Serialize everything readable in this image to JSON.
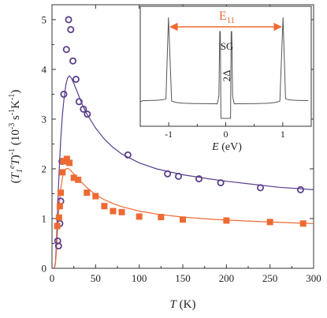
{
  "chart_data": [
    {
      "type": "scatter",
      "title": "",
      "xlabel": "T (K)",
      "xlabel_italic": "T",
      "xlabel_unit": " (K)",
      "ylabel": "(T₁ᵉT)⁻¹ (10⁻³ s⁻¹K⁻¹)",
      "ylabel_lead": "(",
      "ylabel_T": "T",
      "ylabel_sub1": "1",
      "ylabel_supe": "e",
      "ylabel_T2": "T",
      "ylabel_close": ")",
      "ylabel_sup_m1": "-1",
      "ylabel_units": " (10",
      "ylabel_sup_m3": "-3",
      "ylabel_units2": " s",
      "ylabel_sup_m1b": "-1",
      "ylabel_units3": "K",
      "ylabel_sup_m1c": "-1",
      "ylabel_units4": ")",
      "xlim": [
        0,
        300
      ],
      "ylim": [
        0,
        5.3
      ],
      "xticks": [
        0,
        50,
        100,
        150,
        200,
        250,
        300
      ],
      "yticks": [
        0,
        1,
        2,
        3,
        4,
        5
      ],
      "grid": false,
      "series": [
        {
          "marker": "circle",
          "color": "#5b3f8c",
          "points": [
            [
              6.5,
              0.55
            ],
            [
              7.5,
              0.45
            ],
            [
              9,
              0.9
            ],
            [
              10,
              1.35
            ],
            [
              11.5,
              2.15
            ],
            [
              13.5,
              3.5
            ],
            [
              16.5,
              4.4
            ],
            [
              19,
              5.0
            ],
            [
              21.5,
              4.8
            ],
            [
              24,
              4.17
            ],
            [
              27.5,
              3.8
            ],
            [
              31,
              3.35
            ],
            [
              36,
              3.2
            ],
            [
              40.5,
              3.1
            ],
            [
              87,
              2.28
            ],
            [
              132.5,
              1.9
            ],
            [
              145,
              1.85
            ],
            [
              168.5,
              1.8
            ],
            [
              193.5,
              1.72
            ],
            [
              239,
              1.62
            ],
            [
              285,
              1.58
            ]
          ]
        },
        {
          "marker": "square",
          "color": "#ee6a33",
          "points": [
            [
              6,
              0.85
            ],
            [
              8,
              1.02
            ],
            [
              9,
              1.25
            ],
            [
              10,
              1.52
            ],
            [
              12,
              1.93
            ],
            [
              13,
              2.15
            ],
            [
              17,
              2.2
            ],
            [
              20,
              2.12
            ],
            [
              25,
              1.82
            ],
            [
              30,
              1.78
            ],
            [
              40,
              1.52
            ],
            [
              50,
              1.45
            ],
            [
              60,
              1.25
            ],
            [
              70,
              1.15
            ],
            [
              80,
              1.13
            ],
            [
              100,
              1.04
            ],
            [
              125,
              1.03
            ],
            [
              150,
              0.98
            ],
            [
              200,
              0.96
            ],
            [
              250,
              0.93
            ],
            [
              288,
              0.9
            ]
          ]
        }
      ],
      "fit_curves": [
        {
          "color": "#5b3f8c",
          "points": [
            [
              2,
              0
            ],
            [
              3,
              0.02
            ],
            [
              4,
              0.12
            ],
            [
              5,
              0.45
            ],
            [
              6,
              0.95
            ],
            [
              7,
              1.45
            ],
            [
              8,
              1.9
            ],
            [
              10,
              2.6
            ],
            [
              12,
              3.1
            ],
            [
              14,
              3.45
            ],
            [
              16,
              3.7
            ],
            [
              18,
              3.83
            ],
            [
              20,
              3.87
            ],
            [
              22,
              3.83
            ],
            [
              25,
              3.72
            ],
            [
              30,
              3.5
            ],
            [
              35,
              3.28
            ],
            [
              40,
              3.1
            ],
            [
              50,
              2.82
            ],
            [
              60,
              2.6
            ],
            [
              70,
              2.43
            ],
            [
              80,
              2.3
            ],
            [
              100,
              2.12
            ],
            [
              120,
              2.0
            ],
            [
              150,
              1.88
            ],
            [
              180,
              1.8
            ],
            [
              200,
              1.75
            ],
            [
              230,
              1.69
            ],
            [
              260,
              1.63
            ],
            [
              300,
              1.58
            ]
          ]
        },
        {
          "color": "#ee6a33",
          "points": [
            [
              2,
              0
            ],
            [
              3,
              0.02
            ],
            [
              4,
              0.1
            ],
            [
              5,
              0.32
            ],
            [
              6,
              0.62
            ],
            [
              7,
              0.95
            ],
            [
              8,
              1.22
            ],
            [
              10,
              1.6
            ],
            [
              12,
              1.83
            ],
            [
              14,
              1.95
            ],
            [
              16,
              2.0
            ],
            [
              18,
              2.01
            ],
            [
              20,
              1.99
            ],
            [
              25,
              1.9
            ],
            [
              30,
              1.8
            ],
            [
              40,
              1.62
            ],
            [
              50,
              1.48
            ],
            [
              60,
              1.38
            ],
            [
              70,
              1.3
            ],
            [
              80,
              1.24
            ],
            [
              100,
              1.15
            ],
            [
              120,
              1.09
            ],
            [
              150,
              1.03
            ],
            [
              180,
              0.99
            ],
            [
              200,
              0.97
            ],
            [
              250,
              0.93
            ],
            [
              300,
              0.9
            ]
          ]
        }
      ]
    },
    {
      "type": "line",
      "role": "inset",
      "xlabel": "E (eV)",
      "xlabel_italic": "E",
      "xlabel_unit": " (eV)",
      "xlim": [
        -1.5,
        1.5
      ],
      "xticks": [
        -1,
        0,
        1
      ],
      "xtick_labels": [
        "-1",
        "0",
        "1"
      ],
      "annotations": {
        "e11_main": "E",
        "e11_sub": "11",
        "sg": "SG",
        "gap": "2Δ"
      },
      "arrow_color": "#ee6a33",
      "line_color": "#555555"
    }
  ]
}
